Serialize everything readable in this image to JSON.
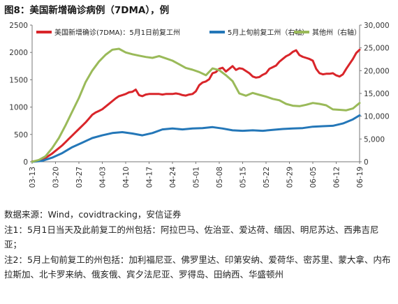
{
  "chart_data": {
    "type": "line",
    "title": "图8：美国新增确诊病例（7DMA），例",
    "x_tick_labels": [
      "03-13",
      "03-20",
      "03-27",
      "04-03",
      "04-10",
      "04-17",
      "04-24",
      "05-01",
      "05-08",
      "05-15",
      "05-22",
      "05-29",
      "06-05",
      "06-12",
      "06-19"
    ],
    "left_axis": {
      "ylim": [
        0,
        2500
      ],
      "ticks": [
        0,
        500,
        1000,
        1500,
        2000,
        2500
      ]
    },
    "right_axis": {
      "ylim": [
        0,
        30000
      ],
      "ticks": [
        "0",
        "5,000",
        "10,000",
        "15,000",
        "20,000",
        "25,000",
        "30,000"
      ]
    },
    "grid": false,
    "legend_position": "top",
    "series": [
      {
        "name": "美国新增确诊(7DMA)：5月1日前复工州",
        "axis": "left",
        "color": "#d9252a",
        "x": [
          0,
          1,
          2,
          3,
          4,
          5,
          6,
          7,
          8,
          9,
          10,
          11,
          12,
          13,
          14,
          15,
          16,
          17,
          18,
          19,
          20,
          21,
          22,
          23,
          24,
          25,
          26,
          27,
          28,
          29,
          30,
          31,
          32,
          33,
          34,
          35,
          36,
          37,
          38,
          39,
          40,
          41,
          42,
          43,
          44,
          45,
          46,
          47,
          48,
          49,
          50,
          51,
          52,
          53,
          54,
          55,
          56,
          57,
          58,
          59,
          60,
          61,
          62,
          63,
          64,
          65,
          66,
          67,
          68,
          69,
          70,
          71,
          72,
          73,
          74,
          75,
          76,
          77,
          78,
          79,
          80,
          81,
          82,
          83,
          84,
          85,
          86,
          87,
          88,
          89,
          90,
          91,
          92,
          93,
          94,
          95,
          96,
          97,
          98
        ],
        "values": [
          5,
          10,
          20,
          40,
          70,
          110,
          150,
          200,
          250,
          300,
          360,
          420,
          480,
          540,
          600,
          660,
          720,
          790,
          860,
          900,
          930,
          960,
          1010,
          1060,
          1110,
          1160,
          1200,
          1220,
          1240,
          1270,
          1280,
          1320,
          1220,
          1200,
          1230,
          1240,
          1240,
          1240,
          1240,
          1230,
          1240,
          1240,
          1240,
          1250,
          1240,
          1220,
          1210,
          1230,
          1240,
          1290,
          1400,
          1450,
          1470,
          1510,
          1620,
          1640,
          1700,
          1720,
          1650,
          1700,
          1750,
          1680,
          1710,
          1700,
          1660,
          1620,
          1560,
          1540,
          1550,
          1590,
          1620,
          1700,
          1730,
          1760,
          1830,
          1880,
          1930,
          1960,
          2010,
          2040,
          1950,
          1920,
          1900,
          1880,
          1850,
          1700,
          1620,
          1600,
          1610,
          1610,
          1620,
          1580,
          1560,
          1600,
          1700,
          1790,
          1880,
          1990,
          2050
        ]
      },
      {
        "name": "5月上旬前复工州（右轴）",
        "axis": "right",
        "color": "#2477b8",
        "x": [
          0,
          3,
          6,
          9,
          12,
          15,
          18,
          21,
          24,
          27,
          30,
          33,
          36,
          39,
          42,
          45,
          48,
          51,
          54,
          57,
          60,
          63,
          66,
          69,
          72,
          75,
          78,
          81,
          84,
          87,
          90,
          93,
          96,
          98
        ],
        "values": [
          0,
          200,
          900,
          1900,
          3200,
          4200,
          5200,
          5800,
          6300,
          6500,
          6200,
          5800,
          6300,
          7100,
          7300,
          7100,
          7300,
          7400,
          7600,
          7300,
          6900,
          6800,
          6900,
          6800,
          7000,
          7200,
          7300,
          7400,
          7700,
          7800,
          7900,
          8400,
          9300,
          10200
        ]
      },
      {
        "name": "其他州（右轴）",
        "axis": "right",
        "color": "#9aba59",
        "x": [
          0,
          2,
          4,
          6,
          8,
          10,
          12,
          14,
          16,
          18,
          20,
          22,
          24,
          26,
          28,
          30,
          32,
          34,
          36,
          38,
          40,
          42,
          44,
          46,
          48,
          50,
          52,
          54,
          56,
          58,
          60,
          62,
          64,
          66,
          68,
          70,
          72,
          74,
          76,
          78,
          80,
          82,
          84,
          86,
          88,
          90,
          92,
          94,
          96,
          98
        ],
        "values": [
          0,
          400,
          1200,
          3000,
          5200,
          8000,
          11000,
          14000,
          17500,
          20000,
          22000,
          23500,
          24600,
          24800,
          24000,
          23600,
          23300,
          23000,
          22800,
          23200,
          22700,
          22200,
          21400,
          20600,
          20200,
          19700,
          19000,
          20500,
          20100,
          19000,
          17700,
          15000,
          14500,
          15100,
          14700,
          14300,
          13800,
          13500,
          12700,
          12300,
          12200,
          12500,
          12900,
          12700,
          12400,
          11500,
          11400,
          11300,
          11700,
          12900
        ]
      }
    ]
  },
  "notes": [
    "数据来源：Wind，covidtracking，安信证券",
    "注1：5月1日当天及此前复工的州包括：阿拉巴马、佐治亚、爱达荷、缅因、明尼苏达、西弗吉尼亚；",
    "注2：5月上旬前复工的州包括：加利福尼亚、佛罗里达、印第安纳、爱荷华、密苏里、蒙大拿、内布拉斯加、北卡罗来纳、俄亥俄、宾夕法尼亚、罗得岛、田纳西、华盛顿州"
  ]
}
